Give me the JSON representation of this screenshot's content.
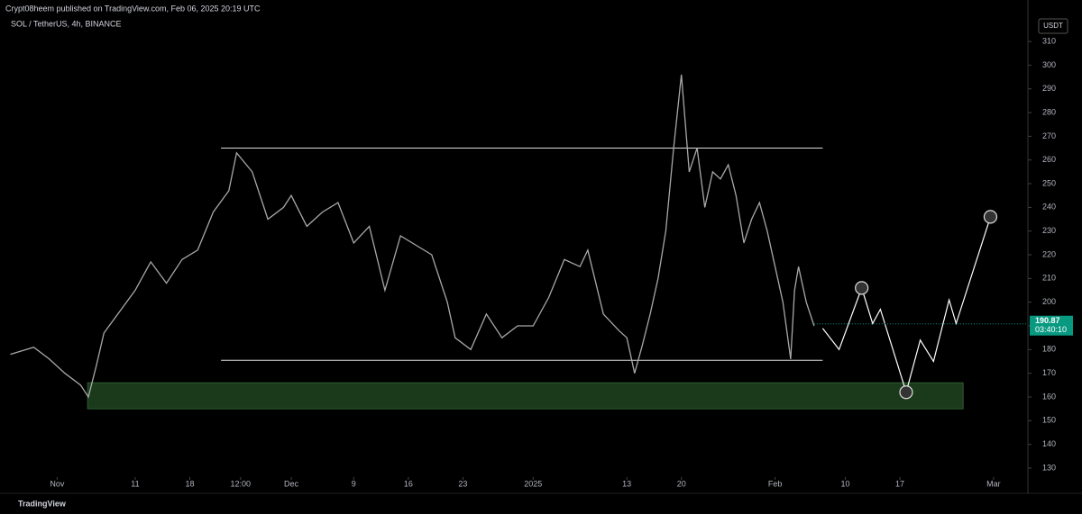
{
  "header": "Crypt08heem published on TradingView.com, Feb 06, 2025 20:19 UTC",
  "footer": "TradingView",
  "chart_data": {
    "type": "line",
    "title": "SOL / TetherUS, 4h, BINANCE",
    "currency": "USDT",
    "last_price": 190.87,
    "countdown": "03:40:10",
    "ylim": [
      126.2,
      319.9
    ],
    "yticks": [
      130,
      140,
      150,
      160,
      170,
      180,
      190,
      200,
      210,
      220,
      230,
      240,
      250,
      260,
      270,
      280,
      290,
      300,
      310
    ],
    "xlim": [
      -6.4,
      124.4
    ],
    "xticks": [
      {
        "value": 0,
        "label": "Nov"
      },
      {
        "value": 10,
        "label": "11"
      },
      {
        "value": 17,
        "label": "18"
      },
      {
        "value": 23.5,
        "label": "12:00"
      },
      {
        "value": 30,
        "label": "Dec"
      },
      {
        "value": 38,
        "label": "9"
      },
      {
        "value": 45,
        "label": "16"
      },
      {
        "value": 52,
        "label": "23"
      },
      {
        "value": 61,
        "label": "2025"
      },
      {
        "value": 73,
        "label": "13"
      },
      {
        "value": 80,
        "label": "20"
      },
      {
        "value": 92,
        "label": "Feb"
      },
      {
        "value": 101,
        "label": "10"
      },
      {
        "value": 108,
        "label": "17"
      },
      {
        "value": 120,
        "label": "Mar"
      }
    ],
    "series": [
      {
        "color": "#a8a8a8",
        "x": [
          -6,
          -3,
          -1,
          1,
          3,
          4,
          5,
          6,
          8,
          10,
          12,
          14,
          16,
          18,
          20,
          22,
          23,
          25,
          27,
          29,
          30,
          32,
          34,
          36,
          38,
          40,
          42,
          44,
          46,
          48,
          50,
          51,
          53,
          55,
          57,
          59,
          61,
          63,
          65,
          67,
          68,
          70,
          72,
          73,
          74,
          75,
          76,
          77,
          78,
          79,
          80,
          81,
          82,
          83,
          84,
          85,
          86,
          87,
          88,
          89,
          90,
          91,
          92,
          93,
          94,
          94.5,
          95,
          96,
          97
        ],
        "values": [
          178,
          181,
          176,
          170,
          165,
          160,
          173,
          187,
          196,
          205,
          217,
          208,
          218,
          222,
          238,
          247,
          263,
          255,
          235,
          240,
          245,
          232,
          238,
          242,
          225,
          232,
          205,
          228,
          224,
          220,
          200,
          185,
          180,
          195,
          185,
          190,
          190,
          202,
          218,
          215,
          222,
          195,
          188,
          185,
          170,
          182,
          195,
          210,
          230,
          265,
          296,
          255,
          265,
          240,
          255,
          252,
          258,
          245,
          225,
          235,
          242,
          230,
          215,
          200,
          176,
          205,
          215,
          200,
          190
        ]
      },
      {
        "color": "#ffffff",
        "x": [
          98.1,
          100.2,
          103.1,
          104.5,
          105.5,
          108.8,
          110.6,
          112.3,
          114.3,
          115.2,
          119.6
        ],
        "values": [
          189,
          180,
          206,
          191,
          197,
          162,
          184,
          175,
          201,
          191,
          236
        ]
      }
    ],
    "hlines": [
      {
        "value": 265,
        "x": [
          21,
          98.1
        ]
      },
      {
        "value": 175.5,
        "x": [
          21,
          98.1
        ]
      }
    ],
    "zone": {
      "x": [
        3.9,
        116.1
      ],
      "y": [
        155,
        166
      ],
      "color": "#1b3a1b"
    },
    "markers": [
      2,
      5,
      10
    ]
  }
}
